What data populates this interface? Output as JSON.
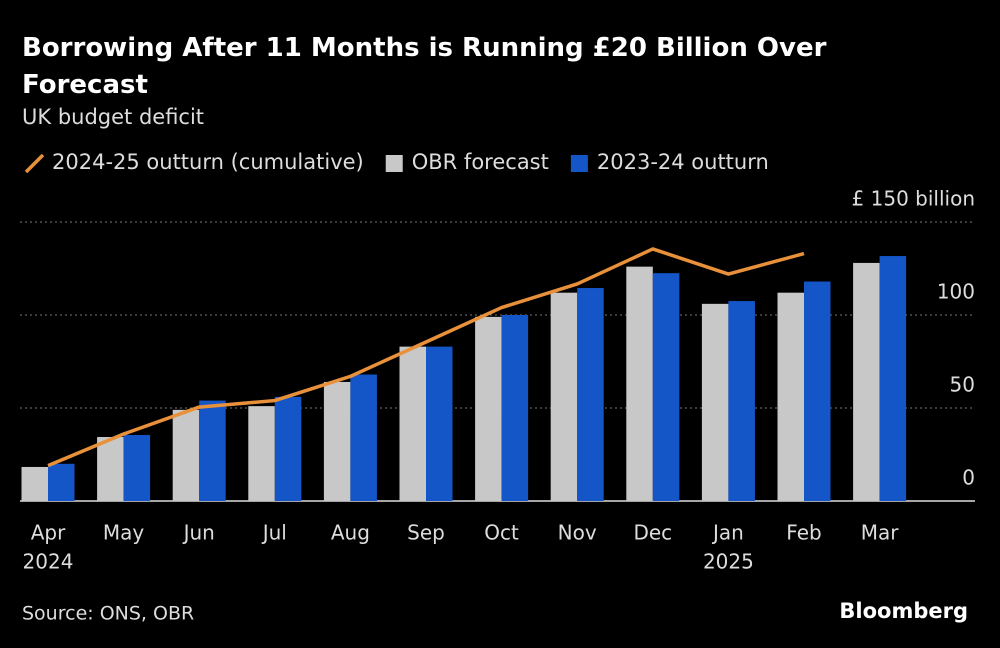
{
  "chart_data": {
    "type": "bar",
    "title": "Borrowing After 11 Months is Running £20 Billion Over Forecast",
    "subtitle": "UK budget deficit",
    "source": "Source: ONS, OBR",
    "brand": "Bloomberg",
    "categories": [
      "Apr",
      "May",
      "Jun",
      "Jul",
      "Aug",
      "Sep",
      "Oct",
      "Nov",
      "Dec",
      "Jan",
      "Feb",
      "Mar"
    ],
    "category_years": [
      "2024",
      null,
      null,
      null,
      null,
      null,
      null,
      null,
      null,
      "2025",
      null,
      null
    ],
    "series": [
      {
        "name": "2024-25 outturn (cumulative)",
        "type": "line",
        "color": "#e8913a",
        "values": [
          19,
          36,
          50.5,
          54,
          67,
          85.5,
          104,
          116.7,
          135.5,
          122,
          133,
          null
        ]
      },
      {
        "name": "OBR forecast",
        "type": "bar",
        "color": "#c8c8c8",
        "values": [
          18.3,
          34.4,
          49,
          51,
          64,
          83,
          99,
          112,
          126,
          106,
          112,
          128
        ]
      },
      {
        "name": "2023-24 outturn",
        "type": "bar",
        "color": "#1456c8",
        "values": [
          20,
          35.5,
          54,
          56,
          68,
          83,
          100,
          114.5,
          122.5,
          107.5,
          118,
          131.7
        ]
      }
    ],
    "ylim": [
      0,
      150
    ],
    "yticks": [
      0,
      50,
      100,
      {
        "value": 150,
        "label": "£ 150 billion"
      }
    ],
    "grid": true
  }
}
